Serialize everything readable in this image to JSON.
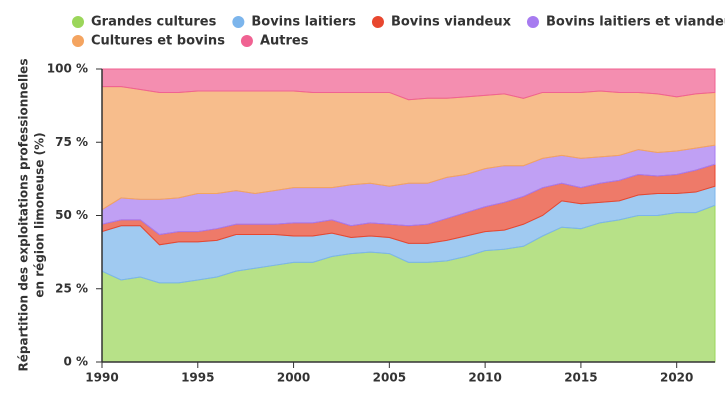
{
  "chart_data": {
    "type": "stacked-area",
    "x": [
      1990,
      1991,
      1992,
      1993,
      1994,
      1995,
      1996,
      1997,
      1998,
      1999,
      2000,
      2001,
      2002,
      2003,
      2004,
      2005,
      2006,
      2007,
      2008,
      2009,
      2010,
      2011,
      2012,
      2013,
      2014,
      2015,
      2016,
      2017,
      2018,
      2019,
      2020,
      2021,
      2022
    ],
    "series": [
      {
        "name": "Grandes cultures",
        "color": "#9bd65a",
        "values": [
          31,
          28,
          29,
          27,
          27,
          28,
          29,
          31,
          32,
          33,
          34,
          34,
          36,
          37,
          37.5,
          37,
          34,
          34,
          34.5,
          36,
          38,
          38.5,
          39.5,
          43,
          46,
          45.5,
          47.5,
          48.5,
          50,
          50,
          51,
          51,
          53.5
        ]
      },
      {
        "name": "Bovins laitiers",
        "color": "#7cb5ec",
        "values": [
          13.5,
          18.5,
          17.5,
          13,
          14,
          13,
          12.5,
          12.5,
          11.5,
          10.5,
          9,
          9,
          8,
          5.5,
          5.5,
          5.5,
          6.5,
          6.5,
          7,
          7,
          6.5,
          6.5,
          7.5,
          7,
          9,
          8.5,
          7,
          6.5,
          7,
          7.5,
          6.5,
          7,
          6.5
        ]
      },
      {
        "name": "Bovins viandeux",
        "color": "#e8472f",
        "values": [
          2.5,
          2,
          2,
          3.5,
          3.5,
          3.5,
          4,
          3.5,
          3.5,
          3.5,
          4.5,
          4.5,
          4.5,
          4,
          4.5,
          4.5,
          6,
          6.5,
          7.5,
          8,
          8.5,
          9.5,
          9.5,
          9.5,
          6,
          5.5,
          6.5,
          7,
          7,
          6,
          6.5,
          7.5,
          7.5
        ]
      },
      {
        "name": "Bovins laitiers et viandeux",
        "color": "#a77bf0",
        "values": [
          5,
          7.5,
          7,
          12,
          11.5,
          13,
          12,
          11.5,
          10.5,
          11.5,
          12,
          12,
          11,
          14,
          13.5,
          13,
          14.5,
          14,
          14,
          13,
          13,
          12.5,
          10.5,
          10,
          9.5,
          10,
          9,
          8.5,
          8.5,
          8,
          8,
          7.5,
          6.5
        ]
      },
      {
        "name": "Cultures et bovins",
        "color": "#f4a460",
        "values": [
          42,
          38,
          37.5,
          36.5,
          36,
          35,
          35,
          34,
          35,
          34,
          33,
          32.5,
          32.5,
          31.5,
          31,
          32,
          28.5,
          29,
          27,
          26.5,
          25,
          24.5,
          23,
          22.5,
          21.5,
          22.5,
          22.5,
          21.5,
          19.5,
          20,
          18.5,
          18.5,
          18
        ]
      },
      {
        "name": "Autres",
        "color": "#f06292",
        "values": [
          6,
          6,
          7,
          8,
          8,
          7.5,
          7.5,
          7.5,
          7.5,
          7.5,
          7.5,
          8,
          8,
          8,
          8,
          8,
          10.5,
          10,
          10,
          9.5,
          9,
          8.5,
          10,
          8,
          8,
          8,
          7.5,
          8,
          8,
          8.5,
          9.5,
          8.5,
          8
        ]
      }
    ],
    "ylabel": [
      "Répartition des exploitations professionnelles",
      "en région limoneuse (%)"
    ],
    "xlim": [
      1990,
      2022
    ],
    "xticks": [
      1990,
      1995,
      2000,
      2005,
      2010,
      2015,
      2020
    ],
    "ylim": [
      0,
      100
    ],
    "yticks": [
      {
        "value": 0,
        "label": "0 %"
      },
      {
        "value": 25,
        "label": "25 %"
      },
      {
        "value": 50,
        "label": "50 %"
      },
      {
        "value": 75,
        "label": "75 %"
      },
      {
        "value": 100,
        "label": "100 %"
      }
    ],
    "legend": "top"
  }
}
